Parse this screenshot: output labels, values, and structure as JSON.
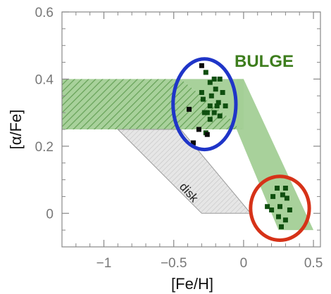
{
  "chart_data": {
    "type": "scatter",
    "title": "",
    "xlabel": "[Fe/H]",
    "ylabel": "[α/Fe]",
    "xlim": [
      -1.3,
      0.55
    ],
    "ylim": [
      -0.1,
      0.6
    ],
    "xticks": [
      -1,
      -0.5,
      0,
      0.5
    ],
    "xtick_labels": [
      "−1",
      "−0.5",
      "0",
      "0.5"
    ],
    "yticks": [
      0,
      0.2,
      0.4,
      0.6
    ],
    "ytick_labels": [
      "0",
      "0.2",
      "0.4",
      "0.6"
    ],
    "grid": false,
    "annotations": [
      {
        "text": "BULGE",
        "color": "#3d7d1d"
      },
      {
        "text": "disk",
        "color": "#222222"
      }
    ],
    "regions": [
      {
        "name": "bulge_hatched",
        "fill": "#a3cf96",
        "hatched": true,
        "polygon": [
          [
            -1.35,
            0.4
          ],
          [
            -0.45,
            0.4
          ],
          [
            -0.0,
            0.25
          ],
          [
            -1.35,
            0.25
          ]
        ]
      },
      {
        "name": "bulge_plateau",
        "fill": "#a3cf96",
        "hatched": false,
        "polygon": [
          [
            -0.45,
            0.4
          ],
          [
            0.0,
            0.4
          ],
          [
            0.0,
            0.25
          ],
          [
            -0.0,
            0.25
          ]
        ]
      },
      {
        "name": "bulge_knee",
        "fill": "#a3cf96",
        "hatched": false,
        "polygon": [
          [
            -0.05,
            0.4
          ],
          [
            0.0,
            0.4
          ],
          [
            0.5,
            -0.05
          ],
          [
            0.25,
            -0.05
          ],
          [
            -0.05,
            0.25
          ]
        ]
      },
      {
        "name": "disk",
        "fill": "#e2e2e2",
        "hatched": true,
        "polygon": [
          [
            -0.9,
            0.25
          ],
          [
            -0.45,
            0.25
          ],
          [
            0.05,
            0.0
          ],
          [
            -0.3,
            0.0
          ]
        ]
      }
    ],
    "series": [
      {
        "color": "#0f4f0f",
        "points": [
          [
            -0.3,
            0.44
          ],
          [
            -0.27,
            0.42
          ],
          [
            -0.24,
            0.39
          ],
          [
            -0.21,
            0.4
          ],
          [
            -0.17,
            0.4
          ],
          [
            -0.3,
            0.36
          ],
          [
            -0.2,
            0.37
          ],
          [
            -0.15,
            0.36
          ],
          [
            -0.23,
            0.35
          ],
          [
            -0.18,
            0.33
          ],
          [
            -0.29,
            0.34
          ],
          [
            -0.24,
            0.32
          ],
          [
            -0.19,
            0.32
          ],
          [
            -0.13,
            0.32
          ],
          [
            -0.26,
            0.3
          ],
          [
            -0.21,
            0.3
          ],
          [
            -0.39,
            0.31
          ],
          [
            -0.28,
            0.3
          ],
          [
            -0.17,
            0.29
          ],
          [
            -0.24,
            0.28
          ],
          [
            -0.32,
            0.25
          ],
          [
            -0.27,
            0.24
          ],
          [
            -0.26,
            0.235
          ],
          [
            -0.36,
            0.21
          ],
          [
            0.24,
            0.075
          ],
          [
            0.3,
            0.075
          ],
          [
            0.28,
            0.055
          ],
          [
            0.21,
            0.05
          ],
          [
            0.31,
            0.045
          ],
          [
            0.26,
            0.02
          ],
          [
            0.17,
            0.02
          ],
          [
            0.2,
            0.01
          ],
          [
            0.33,
            0.01
          ],
          [
            0.25,
            -0.01
          ],
          [
            0.3,
            -0.02
          ],
          [
            0.27,
            -0.04
          ]
        ]
      }
    ],
    "ellipses": [
      {
        "color": "#1f35c8",
        "center": [
          -0.28,
          0.325
        ],
        "rx": 0.225,
        "ry": 0.135
      },
      {
        "color": "#d63218",
        "center": [
          0.26,
          0.015
        ],
        "rx": 0.21,
        "ry": 0.095
      }
    ]
  }
}
